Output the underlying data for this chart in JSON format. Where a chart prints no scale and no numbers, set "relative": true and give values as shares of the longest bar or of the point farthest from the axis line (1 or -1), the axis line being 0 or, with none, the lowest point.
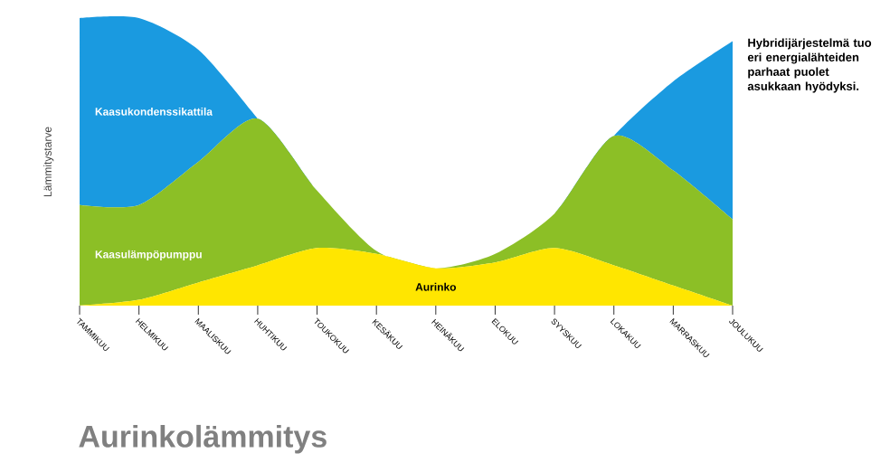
{
  "chart_data": {
    "type": "area",
    "stacked": true,
    "relative": true,
    "title": "Aurinkolämmitys",
    "ylabel": "Lämmitystarve",
    "annotations": [
      "Hybridijärjestelmä tuo eri energialähteiden parhaat puolet asukkaan hyödyksi."
    ],
    "categories": [
      "TAMMIKUU",
      "HELMIKUU",
      "MAALISKUU",
      "HUHTIKUU",
      "TOUKOKUU",
      "KESÄKUU",
      "HEINÄKUU",
      "ELOKUU",
      "SYYSKUU",
      "LOKAKUU",
      "MARRASKUU",
      "JOULUKUU"
    ],
    "series": [
      {
        "name": "Aurinko",
        "color": "#ffe600",
        "values": [
          0,
          0.02,
          0.08,
          0.14,
          0.2,
          0.18,
          0.13,
          0.15,
          0.2,
          0.14,
          0.07,
          0
        ]
      },
      {
        "name": "Kaasulämpöpumppu",
        "color": "#8cbf26",
        "values": [
          0.35,
          0.33,
          0.42,
          0.51,
          0.2,
          0.01,
          0,
          0.03,
          0.12,
          0.45,
          0.4,
          0.3
        ]
      },
      {
        "name": "Kaasukondenssikattila",
        "color": "#1a9ae0",
        "values": [
          0.65,
          0.65,
          0.39,
          0,
          0,
          0,
          0,
          0,
          0,
          0,
          0.31,
          0.62
        ]
      }
    ]
  }
}
